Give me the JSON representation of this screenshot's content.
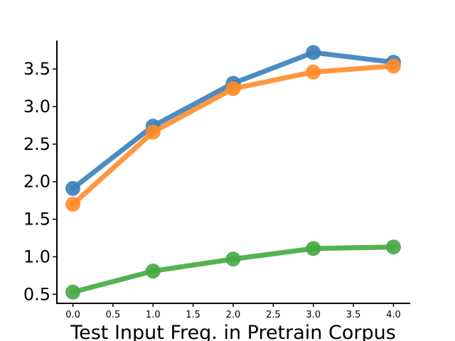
{
  "chart_data": {
    "type": "line",
    "title": "",
    "xlabel": "Test Input Freq. in Pretrain Corpus",
    "ylabel": "",
    "x": [
      0.0,
      1.0,
      2.0,
      3.0,
      4.0
    ],
    "xlim": [
      -0.2,
      4.2
    ],
    "ylim": [
      0.38,
      3.88
    ],
    "xticks": [
      "0.0",
      "0.5",
      "1.0",
      "1.5",
      "2.0",
      "2.5",
      "3.0",
      "3.5",
      "4.0"
    ],
    "yticks": [
      "0.5",
      "1.0",
      "1.5",
      "2.0",
      "2.5",
      "3.0",
      "3.5"
    ],
    "grid": false,
    "legend": "none",
    "series": [
      {
        "color": "#3a80ba",
        "values": [
          1.91,
          2.74,
          3.31,
          3.72,
          3.59
        ]
      },
      {
        "color": "#ff8c29",
        "values": [
          1.7,
          2.66,
          3.24,
          3.46,
          3.54
        ]
      },
      {
        "color": "#44a843",
        "values": [
          0.53,
          0.81,
          0.97,
          1.11,
          1.13
        ]
      }
    ]
  }
}
